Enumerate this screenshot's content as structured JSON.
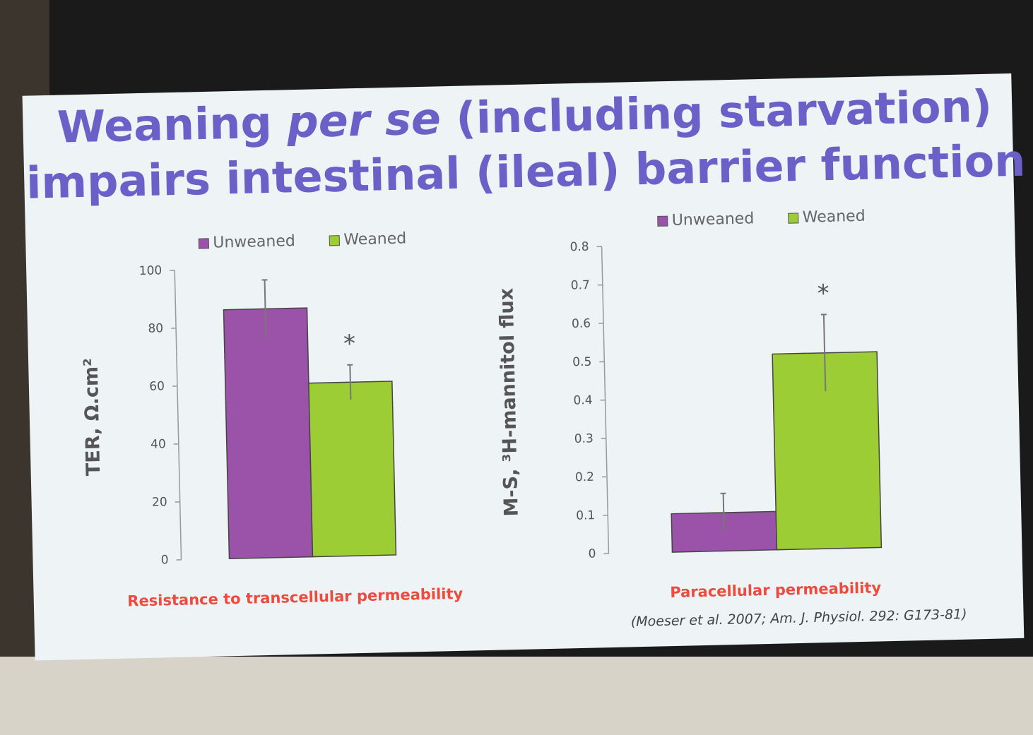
{
  "title": {
    "before": "Weaning",
    "italic": "per se",
    "after": "(including starvation)",
    "line2": "impairs intestinal (ileal) barrier function"
  },
  "citation": "(Moeser et al. 2007; Am. J. Physiol. 292: G173-81)",
  "chart_data": [
    {
      "type": "bar",
      "ylabel": "TER, Ω.cm²",
      "caption": "Resistance to transcellular permeability",
      "categories": [
        "Unweaned",
        "Weaned"
      ],
      "values": [
        86,
        60
      ],
      "errors": [
        10,
        6
      ],
      "colors": [
        "#9b52a9",
        "#9ccd34"
      ],
      "annotation": "*",
      "ylim": [
        0,
        100
      ],
      "yticks": [
        0,
        20,
        40,
        60,
        80,
        100
      ],
      "legend": "top"
    },
    {
      "type": "bar",
      "ylabel": "M-S, ³H-mannitol flux",
      "caption": "Paracellular permeability",
      "categories": [
        "Unweaned",
        "Weaned"
      ],
      "values": [
        0.1,
        0.51
      ],
      "errors": [
        0.05,
        0.1
      ],
      "colors": [
        "#9b52a9",
        "#9ccd34"
      ],
      "annotation": "*",
      "ylim": [
        0,
        0.8
      ],
      "yticks": [
        0,
        0.1,
        0.2,
        0.3,
        0.4,
        0.5,
        0.6,
        0.7,
        0.8
      ],
      "legend": "top"
    }
  ]
}
